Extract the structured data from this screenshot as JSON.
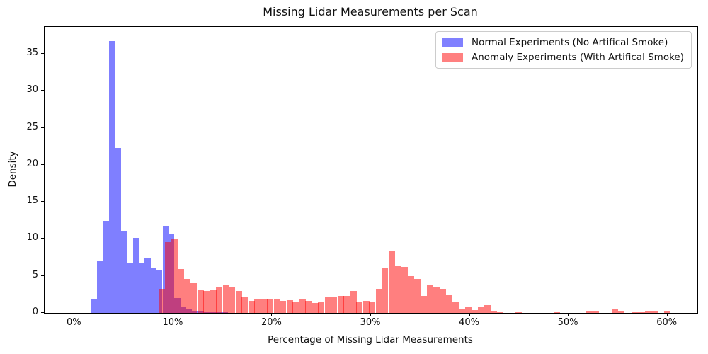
{
  "title": "Missing Lidar Measurements per Scan",
  "axes": {
    "xlabel": "Percentage of Missing Lidar Measurements",
    "ylabel": "Density",
    "x_ticks": [
      {
        "p": 0,
        "label": "0%"
      },
      {
        "p": 10,
        "label": "10%"
      },
      {
        "p": 20,
        "label": "20%"
      },
      {
        "p": 30,
        "label": "30%"
      },
      {
        "p": 40,
        "label": "40%"
      },
      {
        "p": 50,
        "label": "50%"
      },
      {
        "p": 60,
        "label": "60%"
      }
    ],
    "y_ticks": [
      {
        "v": 0,
        "label": "0"
      },
      {
        "v": 5,
        "label": "5"
      },
      {
        "v": 10,
        "label": "10"
      },
      {
        "v": 15,
        "label": "15"
      },
      {
        "v": 20,
        "label": "20"
      },
      {
        "v": 25,
        "label": "25"
      },
      {
        "v": 30,
        "label": "30"
      },
      {
        "v": 35,
        "label": "35"
      }
    ]
  },
  "legend": [
    {
      "label": "Normal Experiments (No Artifical Smoke)",
      "color": "#8080ff"
    },
    {
      "label": "Anomaly Experiments (With Artifical Smoke)",
      "color": "#ff8080"
    }
  ],
  "chart_data": {
    "type": "bar",
    "subtype": "overlaid-histogram",
    "title": "Missing Lidar Measurements per Scan",
    "xlabel": "Percentage of Missing Lidar Measurements",
    "ylabel": "Density",
    "xlim_pct": [
      -3.03,
      63.03
    ],
    "ylim": [
      0,
      38.63
    ],
    "grid": false,
    "legend_position": "upper right",
    "series": [
      {
        "name": "Normal Experiments (No Artifical Smoke)",
        "color": "rgba(0,0,255,0.5)",
        "bin_width_pct": 0.6,
        "bars": [
          {
            "start_pct": 1.7,
            "density": 1.9
          },
          {
            "start_pct": 2.3,
            "density": 7.0
          },
          {
            "start_pct": 2.9,
            "density": 12.4
          },
          {
            "start_pct": 3.5,
            "density": 36.7
          },
          {
            "start_pct": 4.1,
            "density": 22.3
          },
          {
            "start_pct": 4.7,
            "density": 11.1
          },
          {
            "start_pct": 5.3,
            "density": 6.8
          },
          {
            "start_pct": 5.9,
            "density": 10.1
          },
          {
            "start_pct": 6.5,
            "density": 6.8
          },
          {
            "start_pct": 7.1,
            "density": 7.5
          },
          {
            "start_pct": 7.7,
            "density": 6.1
          },
          {
            "start_pct": 8.3,
            "density": 5.8
          },
          {
            "start_pct": 8.9,
            "density": 11.8
          },
          {
            "start_pct": 9.5,
            "density": 10.6
          },
          {
            "start_pct": 10.1,
            "density": 2.0
          },
          {
            "start_pct": 10.7,
            "density": 0.9
          },
          {
            "start_pct": 11.3,
            "density": 0.55
          },
          {
            "start_pct": 11.9,
            "density": 0.3
          },
          {
            "start_pct": 12.5,
            "density": 0.3
          },
          {
            "start_pct": 13.1,
            "density": 0.2
          },
          {
            "start_pct": 13.7,
            "density": 0.15
          },
          {
            "start_pct": 14.3,
            "density": 0.1
          },
          {
            "start_pct": 14.9,
            "density": 0.1
          }
        ]
      },
      {
        "name": "Anomaly Experiments (With Artifical Smoke)",
        "color": "rgba(255,0,0,0.5)",
        "bin_width_pct": 0.645,
        "bars": [
          {
            "start_pct": 8.54,
            "density": 3.3
          },
          {
            "start_pct": 9.18,
            "density": 9.6
          },
          {
            "start_pct": 9.83,
            "density": 9.9
          },
          {
            "start_pct": 10.47,
            "density": 5.9
          },
          {
            "start_pct": 11.12,
            "density": 4.6
          },
          {
            "start_pct": 11.76,
            "density": 4.0
          },
          {
            "start_pct": 12.41,
            "density": 3.1
          },
          {
            "start_pct": 13.05,
            "density": 3.0
          },
          {
            "start_pct": 13.7,
            "density": 3.2
          },
          {
            "start_pct": 14.34,
            "density": 3.5
          },
          {
            "start_pct": 14.99,
            "density": 3.7
          },
          {
            "start_pct": 15.63,
            "density": 3.4
          },
          {
            "start_pct": 16.28,
            "density": 3.0
          },
          {
            "start_pct": 16.92,
            "density": 2.1
          },
          {
            "start_pct": 17.57,
            "density": 1.6
          },
          {
            "start_pct": 18.21,
            "density": 1.85
          },
          {
            "start_pct": 18.86,
            "density": 1.85
          },
          {
            "start_pct": 19.5,
            "density": 1.9
          },
          {
            "start_pct": 20.15,
            "density": 1.8
          },
          {
            "start_pct": 20.79,
            "density": 1.6
          },
          {
            "start_pct": 21.44,
            "density": 1.75
          },
          {
            "start_pct": 22.08,
            "density": 1.4
          },
          {
            "start_pct": 22.73,
            "density": 1.8
          },
          {
            "start_pct": 23.37,
            "density": 1.6
          },
          {
            "start_pct": 24.02,
            "density": 1.3
          },
          {
            "start_pct": 24.66,
            "density": 1.4
          },
          {
            "start_pct": 25.31,
            "density": 2.2
          },
          {
            "start_pct": 25.95,
            "density": 2.1
          },
          {
            "start_pct": 26.6,
            "density": 2.3
          },
          {
            "start_pct": 27.24,
            "density": 2.3
          },
          {
            "start_pct": 27.89,
            "density": 3.0
          },
          {
            "start_pct": 28.53,
            "density": 1.4
          },
          {
            "start_pct": 29.18,
            "density": 1.6
          },
          {
            "start_pct": 29.82,
            "density": 1.5
          },
          {
            "start_pct": 30.47,
            "density": 3.3
          },
          {
            "start_pct": 31.11,
            "density": 6.15
          },
          {
            "start_pct": 31.76,
            "density": 8.4
          },
          {
            "start_pct": 32.4,
            "density": 6.3
          },
          {
            "start_pct": 33.05,
            "density": 6.2
          },
          {
            "start_pct": 33.69,
            "density": 5.0
          },
          {
            "start_pct": 34.34,
            "density": 4.6
          },
          {
            "start_pct": 34.98,
            "density": 2.3
          },
          {
            "start_pct": 35.63,
            "density": 3.8
          },
          {
            "start_pct": 36.27,
            "density": 3.5
          },
          {
            "start_pct": 36.92,
            "density": 3.3
          },
          {
            "start_pct": 37.56,
            "density": 2.5
          },
          {
            "start_pct": 38.21,
            "density": 1.5
          },
          {
            "start_pct": 38.85,
            "density": 0.6
          },
          {
            "start_pct": 39.5,
            "density": 0.8
          },
          {
            "start_pct": 40.14,
            "density": 0.4
          },
          {
            "start_pct": 40.79,
            "density": 0.9
          },
          {
            "start_pct": 41.43,
            "density": 1.1
          },
          {
            "start_pct": 42.08,
            "density": 0.26
          },
          {
            "start_pct": 42.72,
            "density": 0.2
          },
          {
            "start_pct": 44.65,
            "density": 0.2
          },
          {
            "start_pct": 48.52,
            "density": 0.2
          },
          {
            "start_pct": 51.75,
            "density": 0.26
          },
          {
            "start_pct": 52.39,
            "density": 0.26
          },
          {
            "start_pct": 54.33,
            "density": 0.5
          },
          {
            "start_pct": 54.97,
            "density": 0.26
          },
          {
            "start_pct": 56.42,
            "density": 0.2
          },
          {
            "start_pct": 57.06,
            "density": 0.2
          },
          {
            "start_pct": 57.7,
            "density": 0.26
          },
          {
            "start_pct": 58.35,
            "density": 0.26
          },
          {
            "start_pct": 59.64,
            "density": 0.31
          }
        ]
      }
    ]
  }
}
